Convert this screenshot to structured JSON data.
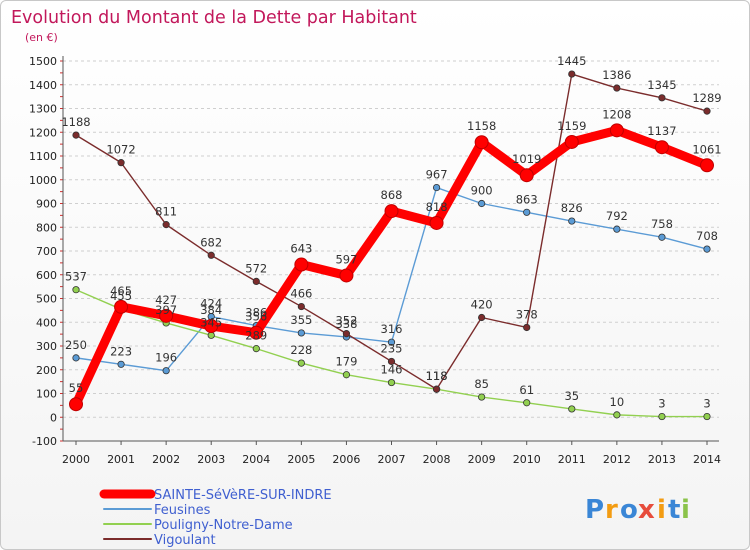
{
  "chart_data": {
    "type": "line",
    "title": "Evolution du Montant de la Dette par Habitant",
    "subtitle": "(en €)",
    "xlabel": "",
    "ylabel": "",
    "x": [
      2000,
      2001,
      2002,
      2003,
      2004,
      2005,
      2006,
      2007,
      2008,
      2009,
      2010,
      2011,
      2012,
      2013,
      2014
    ],
    "ylim": [
      -100,
      1500
    ],
    "yticks": [
      -100,
      0,
      100,
      200,
      300,
      400,
      500,
      600,
      700,
      800,
      900,
      1000,
      1100,
      1200,
      1300,
      1400,
      1500
    ],
    "grid": "horizontal dashed",
    "legend_position": "bottom-left",
    "series": [
      {
        "name": "SAINTE-SéVèRE-SUR-INDRE",
        "color": "#ff0000",
        "highlight": true,
        "values": [
          55,
          465,
          427,
          384,
          356,
          643,
          597,
          868,
          818,
          1158,
          1019,
          1159,
          1208,
          1137,
          1061
        ]
      },
      {
        "name": "Feusines",
        "color": "#5b9bd5",
        "values": [
          250,
          223,
          196,
          424,
          386,
          355,
          338,
          316,
          967,
          900,
          863,
          826,
          792,
          758,
          708
        ]
      },
      {
        "name": "Pouligny-Notre-Dame",
        "color": "#92d050",
        "values": [
          537,
          455,
          397,
          345,
          289,
          228,
          179,
          146,
          118,
          85,
          61,
          35,
          10,
          3,
          3
        ]
      },
      {
        "name": "Vigoulant",
        "color": "#7b2c2c",
        "values": [
          1188,
          1072,
          811,
          682,
          572,
          466,
          352,
          235,
          118,
          420,
          378,
          1445,
          1386,
          1345,
          1289
        ]
      }
    ]
  },
  "logo": {
    "text": "Proxiti",
    "letters": [
      "P",
      "r",
      "o",
      "x",
      "i",
      "t",
      "i"
    ],
    "colors": [
      "#3a86d6",
      "#f39c12",
      "#3a86d6",
      "#e74c3c",
      "#f39c12",
      "#3a86d6",
      "#8bc34a"
    ]
  }
}
